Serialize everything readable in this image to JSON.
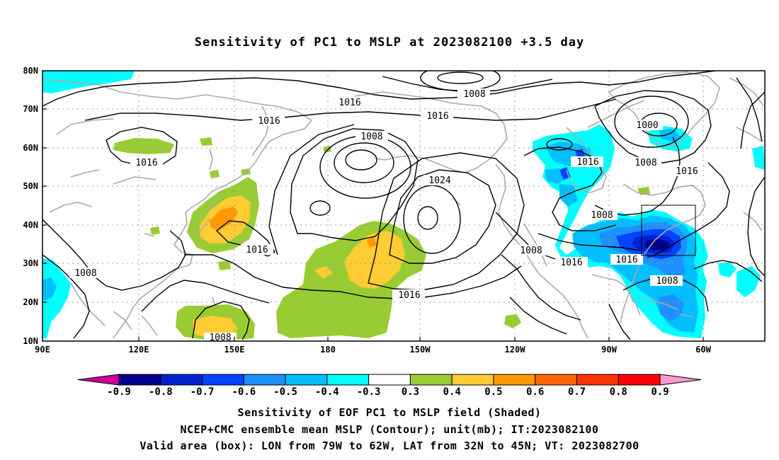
{
  "title": "Sensitivity of PC1 to MSLP at 2023082100 +3.5 day",
  "map": {
    "lat_labels": [
      "80N",
      "70N",
      "60N",
      "50N",
      "40N",
      "30N",
      "20N",
      "10N"
    ],
    "lon_labels": [
      "90E",
      "120E",
      "150E",
      "180",
      "150W",
      "120W",
      "90W",
      "60W"
    ],
    "contour_labels": [
      "1008",
      "1016",
      "1016",
      "1016",
      "1016",
      "1008",
      "1024",
      "1016",
      "1016",
      "1008",
      "1016",
      "1016",
      "1000",
      "1008",
      "1016",
      "1008",
      "1016",
      "1016",
      "1008",
      "1008",
      "1008"
    ],
    "box": {
      "lon_from": "79W",
      "lon_to": "62W",
      "lat_from": "32N",
      "lat_to": "45N"
    },
    "colors": {
      "land": "#aaaaaa",
      "contour": "#000000",
      "grid": "#999999"
    }
  },
  "colorbar": {
    "labels": [
      "-0.9",
      "-0.8",
      "-0.7",
      "-0.6",
      "-0.5",
      "-0.4",
      "-0.3",
      "0.3",
      "0.4",
      "0.5",
      "0.6",
      "0.7",
      "0.8",
      "0.9"
    ],
    "colors": [
      "#cc0099",
      "#00008b",
      "#0022cc",
      "#0044ff",
      "#1e90ff",
      "#00bfff",
      "#00ffff",
      "#ffffff",
      "#99cc33",
      "#ffcc33",
      "#ff9900",
      "#ff6600",
      "#ff3300",
      "#ff0000",
      "#ff99cc"
    ]
  },
  "captions": [
    "Sensitivity of EOF PC1 to MSLP field (Shaded)",
    "NCEP+CMC ensemble mean MSLP (Contour); unit(mb); IT:2023082100",
    "Valid area (box): LON from 79W to 62W, LAT from 32N to 45N; VT: 2023082700"
  ]
}
